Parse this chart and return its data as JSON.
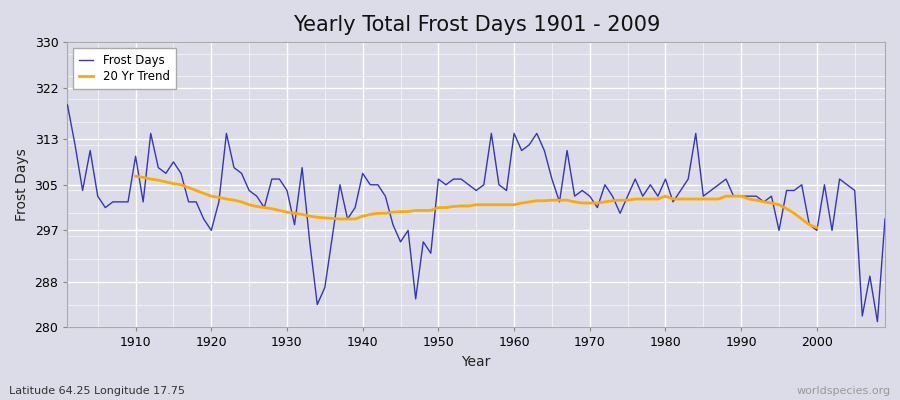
{
  "title": "Yearly Total Frost Days 1901 - 2009",
  "xlabel": "Year",
  "ylabel": "Frost Days",
  "lat_lon_label": "Latitude 64.25 Longitude 17.75",
  "watermark": "worldspecies.org",
  "years": [
    1901,
    1902,
    1903,
    1904,
    1905,
    1906,
    1907,
    1908,
    1909,
    1910,
    1911,
    1912,
    1913,
    1914,
    1915,
    1916,
    1917,
    1918,
    1919,
    1920,
    1921,
    1922,
    1923,
    1924,
    1925,
    1926,
    1927,
    1928,
    1929,
    1930,
    1931,
    1932,
    1933,
    1934,
    1935,
    1936,
    1937,
    1938,
    1939,
    1940,
    1941,
    1942,
    1943,
    1944,
    1945,
    1946,
    1947,
    1948,
    1949,
    1950,
    1951,
    1952,
    1953,
    1954,
    1955,
    1956,
    1957,
    1958,
    1959,
    1960,
    1961,
    1962,
    1963,
    1964,
    1965,
    1966,
    1967,
    1968,
    1969,
    1970,
    1971,
    1972,
    1973,
    1974,
    1975,
    1976,
    1977,
    1978,
    1979,
    1980,
    1981,
    1982,
    1983,
    1984,
    1985,
    1986,
    1987,
    1988,
    1989,
    1990,
    1991,
    1992,
    1993,
    1994,
    1995,
    1996,
    1997,
    1998,
    1999,
    2000,
    2001,
    2002,
    2003,
    2004,
    2005,
    2006,
    2007,
    2008,
    2009
  ],
  "frost_days": [
    319,
    312,
    304,
    311,
    303,
    301,
    302,
    302,
    302,
    310,
    302,
    314,
    308,
    307,
    309,
    307,
    302,
    302,
    299,
    297,
    302,
    314,
    308,
    307,
    304,
    303,
    301,
    306,
    306,
    304,
    298,
    308,
    295,
    284,
    287,
    296,
    305,
    299,
    301,
    307,
    305,
    305,
    303,
    298,
    295,
    297,
    285,
    295,
    293,
    306,
    305,
    306,
    306,
    305,
    304,
    305,
    314,
    305,
    304,
    314,
    311,
    312,
    314,
    311,
    306,
    302,
    311,
    303,
    304,
    303,
    301,
    305,
    303,
    300,
    303,
    306,
    303,
    305,
    303,
    306,
    302,
    304,
    306,
    314,
    303,
    304,
    305,
    306,
    303,
    303,
    303,
    303,
    302,
    303,
    297,
    304,
    304,
    305,
    298,
    297,
    305,
    297,
    306,
    305,
    304,
    282,
    289,
    281,
    299
  ],
  "trend_years": [
    1910,
    1911,
    1912,
    1913,
    1914,
    1915,
    1916,
    1917,
    1918,
    1919,
    1920,
    1921,
    1922,
    1923,
    1924,
    1925,
    1926,
    1927,
    1928,
    1929,
    1930,
    1931,
    1932,
    1933,
    1934,
    1935,
    1936,
    1937,
    1938,
    1939,
    1940,
    1941,
    1942,
    1943,
    1944,
    1945,
    1946,
    1947,
    1948,
    1949,
    1950,
    1951,
    1952,
    1953,
    1954,
    1955,
    1956,
    1957,
    1958,
    1959,
    1960,
    1961,
    1962,
    1963,
    1964,
    1965,
    1966,
    1967,
    1968,
    1969,
    1970,
    1971,
    1972,
    1973,
    1974,
    1975,
    1976,
    1977,
    1978,
    1979,
    1980,
    1981,
    1982,
    1983,
    1984,
    1985,
    1986,
    1987,
    1988,
    1989,
    1990,
    1991,
    1992,
    1993,
    1994,
    1995,
    1996,
    1997,
    1998,
    1999,
    2000
  ],
  "trend_values": [
    306.5,
    306.3,
    306.0,
    305.8,
    305.5,
    305.2,
    305.0,
    304.5,
    304.0,
    303.5,
    303.0,
    302.8,
    302.5,
    302.3,
    302.0,
    301.5,
    301.2,
    301.0,
    300.8,
    300.5,
    300.2,
    300.0,
    299.8,
    299.5,
    299.3,
    299.2,
    299.1,
    299.0,
    299.0,
    299.0,
    299.5,
    299.8,
    300.0,
    300.0,
    300.2,
    300.3,
    300.3,
    300.5,
    300.5,
    300.5,
    301.0,
    301.0,
    301.2,
    301.3,
    301.3,
    301.5,
    301.5,
    301.5,
    301.5,
    301.5,
    301.5,
    301.8,
    302.0,
    302.2,
    302.2,
    302.3,
    302.3,
    302.3,
    302.0,
    301.8,
    301.8,
    301.8,
    302.0,
    302.2,
    302.3,
    302.3,
    302.5,
    302.5,
    302.5,
    302.5,
    303.0,
    302.5,
    302.5,
    302.5,
    302.5,
    302.5,
    302.5,
    302.5,
    303.0,
    303.0,
    303.0,
    302.5,
    302.3,
    302.0,
    301.8,
    301.5,
    300.8,
    300.0,
    299.0,
    298.0,
    297.5
  ],
  "frost_color": "#2222bb",
  "trend_color": "#ffaa00",
  "fig_bg_color": "#dcdce8",
  "plot_bg_color": "#dcdce8",
  "ylim": [
    280,
    330
  ],
  "yticks": [
    280,
    288,
    297,
    305,
    313,
    322,
    330
  ],
  "xticks": [
    1910,
    1920,
    1930,
    1940,
    1950,
    1960,
    1970,
    1980,
    1990,
    2000
  ],
  "title_fontsize": 15,
  "axis_label_fontsize": 10,
  "legend_fontsize": 8.5
}
